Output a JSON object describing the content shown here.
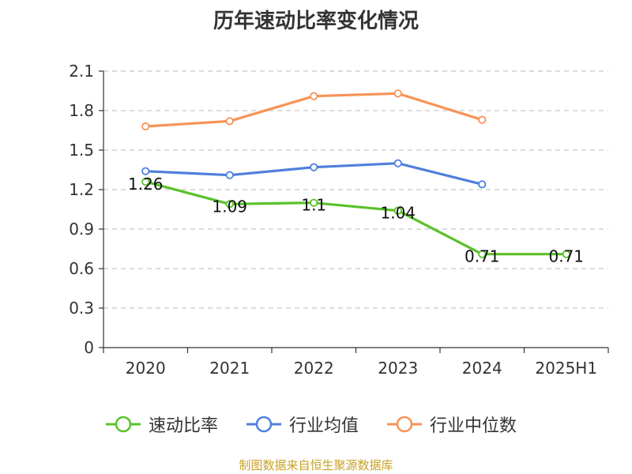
{
  "title": "历年速动比率变化情况",
  "source": "制图数据来自恒生聚源数据库",
  "chart_data": {
    "type": "line",
    "categories": [
      "2020",
      "2021",
      "2022",
      "2023",
      "2024",
      "2025H1"
    ],
    "ylim": [
      0,
      2.1
    ],
    "yticks": [
      "0",
      "0.3",
      "0.6",
      "0.9",
      "1.2",
      "1.5",
      "1.8",
      "2.1"
    ],
    "grid": true,
    "legend_position": "bottom",
    "series": [
      {
        "name": "速动比率",
        "color": "#5ac12b",
        "values": [
          1.26,
          1.09,
          1.1,
          1.04,
          0.71,
          0.71
        ],
        "labels": [
          "1.26",
          "1.09",
          "1.1",
          "1.04",
          "0.71",
          "0.71"
        ]
      },
      {
        "name": "行业均值",
        "color": "#4f7fdc",
        "values": [
          1.34,
          1.31,
          1.37,
          1.4,
          1.24,
          null
        ]
      },
      {
        "name": "行业中位数",
        "color": "#f79357",
        "values": [
          1.68,
          1.72,
          1.91,
          1.93,
          1.73,
          null
        ]
      }
    ]
  }
}
